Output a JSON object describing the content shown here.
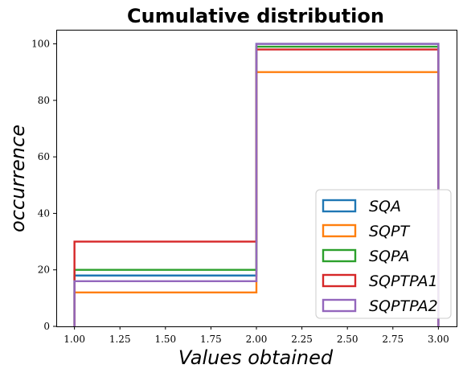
{
  "chart_data": {
    "type": "step-histogram",
    "title": "Cumulative distribution",
    "xlabel": "Values obtained",
    "ylabel": "occurrence",
    "xlim": [
      0.9,
      3.1
    ],
    "ylim": [
      0,
      105
    ],
    "xticks": [
      "1.00",
      "1.25",
      "1.50",
      "1.75",
      "2.00",
      "2.25",
      "2.50",
      "2.75",
      "3.00"
    ],
    "yticks": [
      "0",
      "20",
      "40",
      "60",
      "80",
      "100"
    ],
    "bin_edges": [
      1,
      2,
      3
    ],
    "grid": false,
    "legend_position": "lower right",
    "series": [
      {
        "name": "SQA",
        "color": "#1f77b4",
        "values": [
          18,
          100
        ]
      },
      {
        "name": "SQPT",
        "color": "#ff7f0e",
        "values": [
          12,
          90
        ]
      },
      {
        "name": "SQPA",
        "color": "#2ca02c",
        "values": [
          20,
          99
        ]
      },
      {
        "name": "SQPTPA1",
        "color": "#d62728",
        "values": [
          30,
          98
        ]
      },
      {
        "name": "SQPTPA2",
        "color": "#9467bd",
        "values": [
          16,
          100
        ]
      }
    ]
  }
}
